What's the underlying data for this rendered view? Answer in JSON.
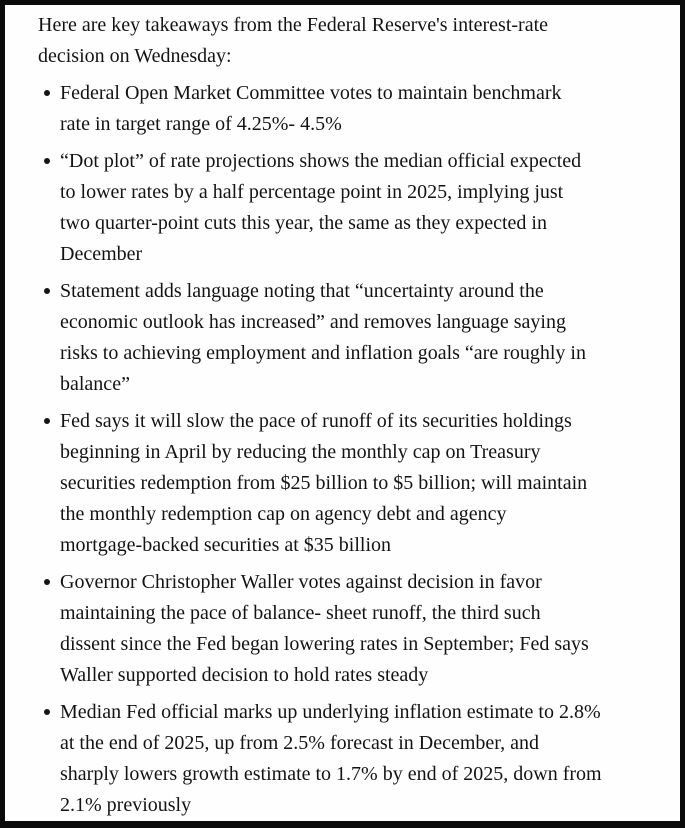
{
  "document": {
    "intro": "Here are key takeaways from the Federal Reserve's interest-rate\ndecision on Wednesday:",
    "bullets": [
      "Federal Open Market Committee votes to maintain benchmark\nrate in target range of 4.25%- 4.5%",
      "“Dot plot” of rate projections shows the median official expected\nto lower rates by a half percentage point in 2025, implying just\ntwo quarter-point cuts this year, the same as they expected in\nDecember",
      "Statement adds language noting that “uncertainty around the\neconomic outlook has increased” and removes language saying\nrisks to achieving employment and inflation goals “are roughly in\nbalance”",
      "Fed says it will slow the pace of runoff of its securities holdings\nbeginning in April by reducing the monthly cap on Treasury\nsecurities redemption from $25 billion to $5 billion; will maintain\nthe monthly redemption cap on agency debt and agency\nmortgage-backed securities at $35 billion",
      "Governor Christopher Waller votes against decision in favor\nmaintaining the pace of balance- sheet runoff, the third such\ndissent since the Fed began lowering rates in September; Fed says\nWaller supported decision to hold rates steady",
      "Median Fed official marks up underlying inflation estimate to 2.8%\nat the end of 2025, up from 2.5% forecast in December, and\nsharply lowers growth estimate to 1.7% by end of 2025, down from\n2.1% previously"
    ]
  },
  "colors": {
    "text": "#131313",
    "background": "#fefefe",
    "border": "#0b0b0b"
  }
}
